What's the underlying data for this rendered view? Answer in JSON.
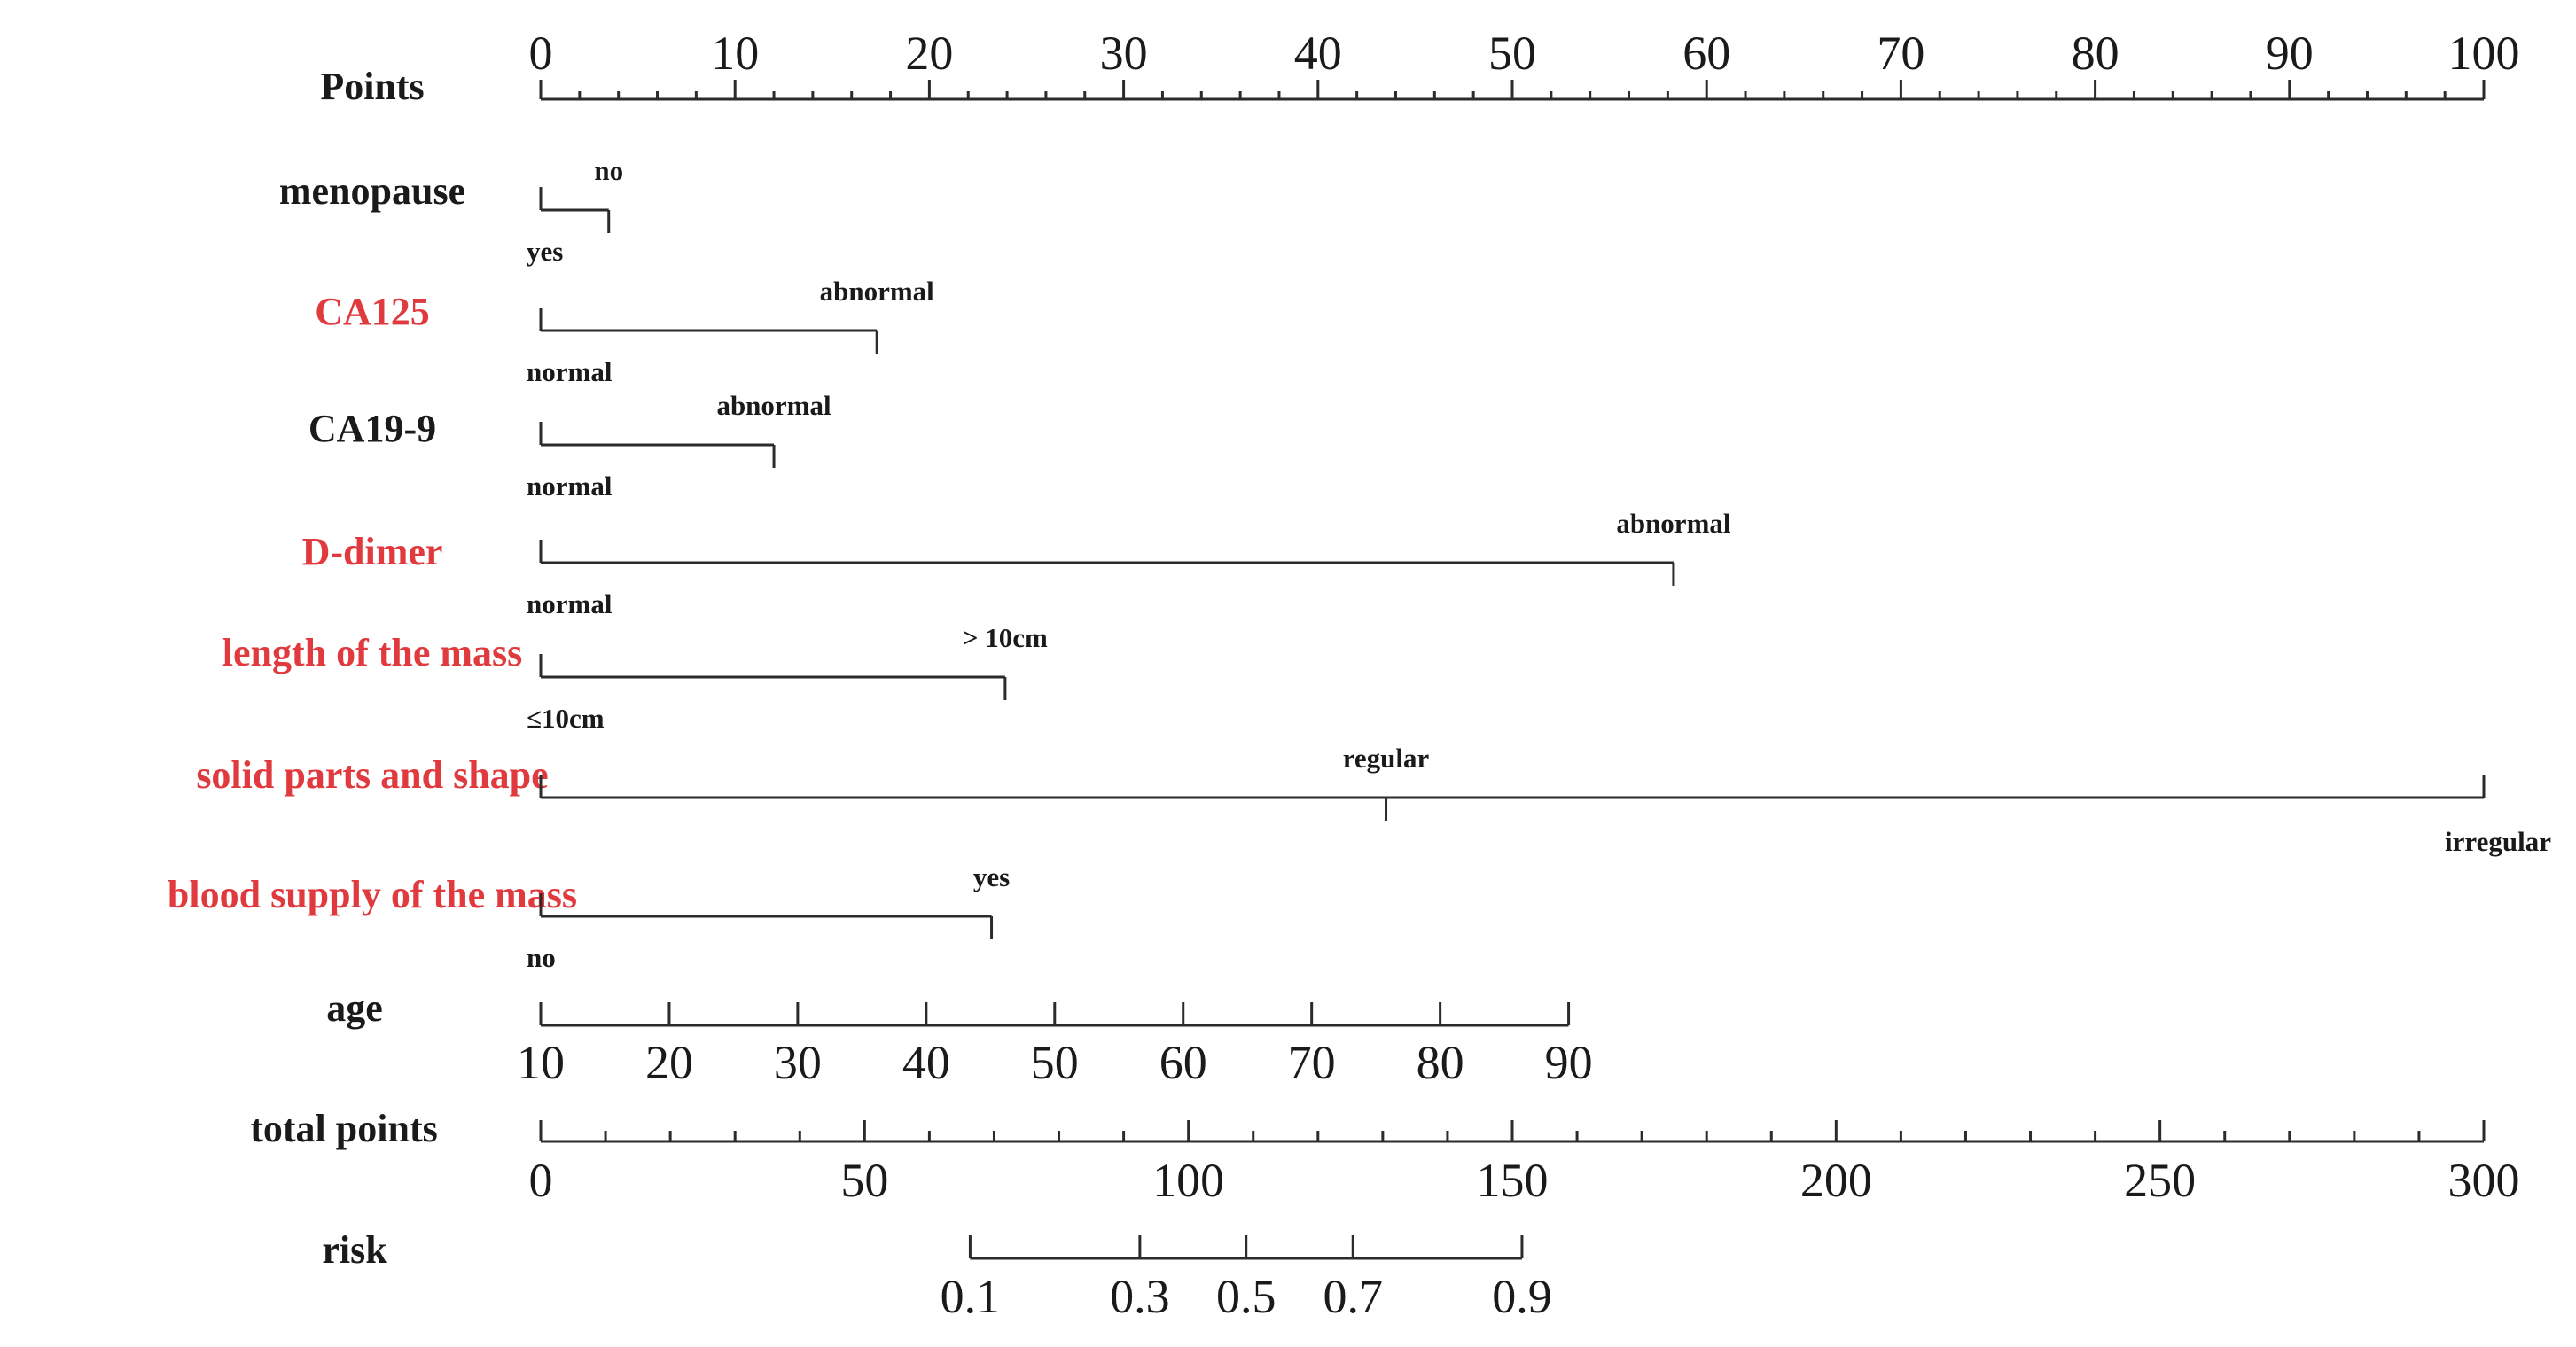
{
  "chart_data": {
    "type": "nomogram",
    "title": "",
    "points_axis": {
      "label": "Points",
      "range": [
        0,
        100
      ],
      "tick_labels": [
        0,
        10,
        20,
        30,
        40,
        50,
        60,
        70,
        80,
        90,
        100
      ],
      "minor_step": 2
    },
    "predictors": [
      {
        "name": "menopause",
        "color": "#1a1a1a",
        "bracket_range": [
          0,
          3.5
        ],
        "levels": [
          {
            "label": "yes",
            "points": 0,
            "side": "below"
          },
          {
            "label": "no",
            "points": 3.5,
            "side": "above"
          }
        ]
      },
      {
        "name": "CA125",
        "color": "#e03a3e",
        "bracket_range": [
          0,
          17.3
        ],
        "levels": [
          {
            "label": "normal",
            "points": 0,
            "side": "below"
          },
          {
            "label": "abnormal",
            "points": 17.3,
            "side": "above"
          }
        ]
      },
      {
        "name": "CA19-9",
        "color": "#1a1a1a",
        "bracket_range": [
          0,
          12
        ],
        "levels": [
          {
            "label": "normal",
            "points": 0,
            "side": "below"
          },
          {
            "label": "abnormal",
            "points": 12,
            "side": "above"
          }
        ]
      },
      {
        "name": "D-dimer",
        "color": "#e03a3e",
        "bracket_range": [
          0,
          58.3
        ],
        "levels": [
          {
            "label": "normal",
            "points": 0,
            "side": "below"
          },
          {
            "label": "abnormal",
            "points": 58.3,
            "side": "above"
          }
        ]
      },
      {
        "name": "length of the mass",
        "color": "#e03a3e",
        "bracket_range": [
          0,
          23.9
        ],
        "levels": [
          {
            "label": "≤10cm",
            "points": 0,
            "side": "below"
          },
          {
            "label": "> 10cm",
            "points": 23.9,
            "side": "above"
          }
        ]
      },
      {
        "name": "solid parts and shape",
        "color": "#e03a3e",
        "bracket_range": [
          0,
          100
        ],
        "levels": [
          {
            "label": "",
            "points": 0,
            "side": "below"
          },
          {
            "label": "regular",
            "points": 43.5,
            "side": "above"
          },
          {
            "label": "irregular",
            "points": 100,
            "side": "below"
          }
        ]
      },
      {
        "name": "blood supply of the mass",
        "color": "#e03a3e",
        "bracket_range": [
          0,
          23.2
        ],
        "levels": [
          {
            "label": "no",
            "points": 0,
            "side": "below"
          },
          {
            "label": "yes",
            "points": 23.2,
            "side": "above"
          }
        ]
      }
    ],
    "age_axis": {
      "label": "age",
      "values": [
        10,
        20,
        30,
        40,
        50,
        60,
        70,
        80,
        90
      ],
      "points_at_10": 0,
      "points_at_90": 52.9
    },
    "total_points_axis": {
      "label": "total points",
      "range": [
        0,
        300
      ],
      "tick_labels": [
        0,
        50,
        100,
        150,
        200,
        250,
        300
      ],
      "minor_step": 10
    },
    "risk_axis": {
      "label": "risk",
      "ticks": [
        {
          "label": "0.1",
          "total_points": 66.3
        },
        {
          "label": "0.3",
          "total_points": 92.5
        },
        {
          "label": "0.5",
          "total_points": 108.9
        },
        {
          "label": "0.7",
          "total_points": 125.4
        },
        {
          "label": "0.9",
          "total_points": 151.5
        }
      ]
    }
  }
}
